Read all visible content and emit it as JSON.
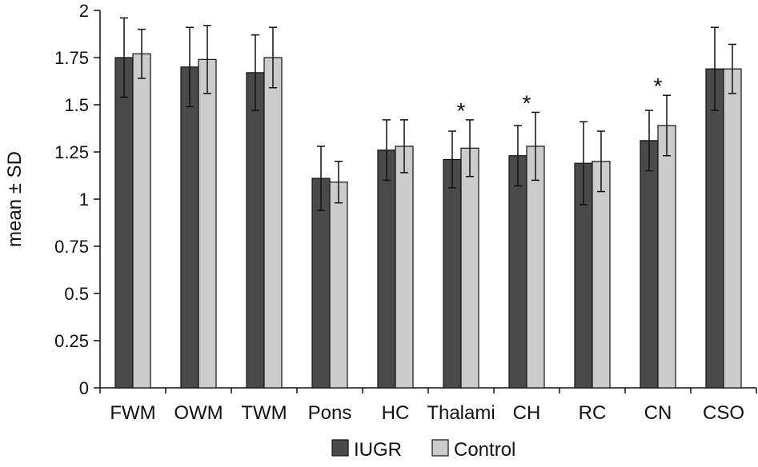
{
  "chart_data": {
    "type": "bar",
    "title": "",
    "xlabel": "",
    "ylabel": "mean ± SD",
    "ylim": [
      0,
      2
    ],
    "yticks": [
      "0",
      "0.25",
      "0.5",
      "0.75",
      "1",
      "1.25",
      "1.5",
      "1.75",
      "2"
    ],
    "grid": false,
    "legend_position": "bottom-center",
    "categories": [
      "FWM",
      "OWM",
      "TWM",
      "Pons",
      "HC",
      "Thalami",
      "CH",
      "RC",
      "CN",
      "CSO"
    ],
    "series": [
      {
        "name": "IUGR",
        "color": "#4a4a4a",
        "values": [
          1.75,
          1.7,
          1.67,
          1.11,
          1.26,
          1.21,
          1.23,
          1.19,
          1.31,
          1.69
        ],
        "errors": [
          0.21,
          0.21,
          0.2,
          0.17,
          0.16,
          0.15,
          0.16,
          0.22,
          0.16,
          0.22
        ]
      },
      {
        "name": "Control",
        "color": "#cccccc",
        "values": [
          1.77,
          1.74,
          1.75,
          1.09,
          1.28,
          1.27,
          1.28,
          1.2,
          1.39,
          1.69
        ],
        "errors": [
          0.13,
          0.18,
          0.16,
          0.11,
          0.14,
          0.15,
          0.18,
          0.16,
          0.16,
          0.13
        ]
      }
    ],
    "annotations": [
      {
        "category": "Thalami",
        "text": "*"
      },
      {
        "category": "CH",
        "text": "*"
      },
      {
        "category": "CN",
        "text": "*"
      }
    ]
  }
}
